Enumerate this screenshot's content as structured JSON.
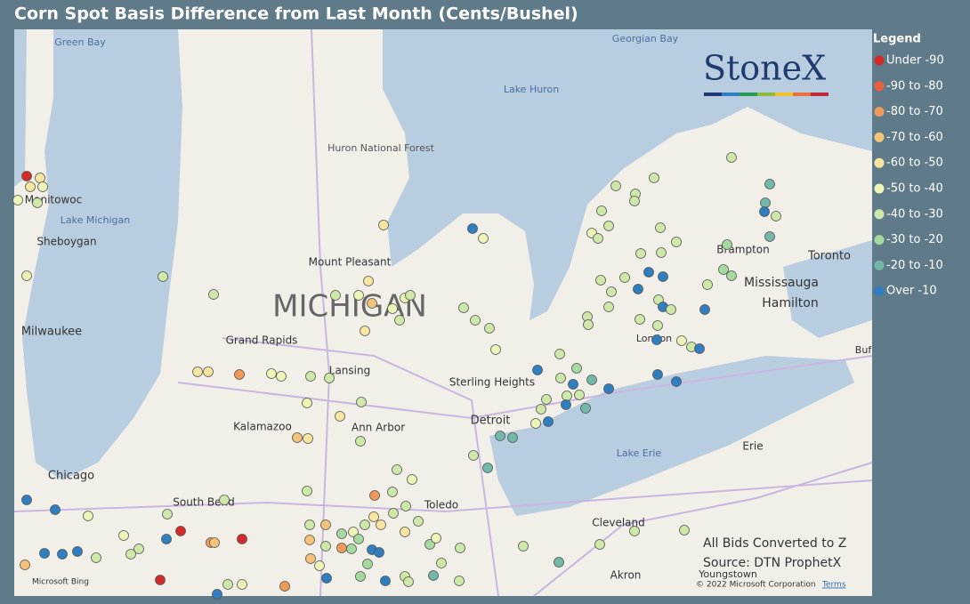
{
  "title": "Corn Spot Basis Difference from Last Month (Cents/Bushel)",
  "legend": {
    "title": "Legend",
    "items": [
      {
        "label": "Under -90",
        "color": "#d42a2a"
      },
      {
        "label": "-90 to -80",
        "color": "#e8603c"
      },
      {
        "label": "-80 to -70",
        "color": "#f09a5a"
      },
      {
        "label": "-70 to -60",
        "color": "#f5c27a"
      },
      {
        "label": "-60 to -50",
        "color": "#f8e6a0"
      },
      {
        "label": "-50 to -40",
        "color": "#eef4b8"
      },
      {
        "label": "-40 to -30",
        "color": "#cde8a8"
      },
      {
        "label": "-30 to -20",
        "color": "#a6d9a0"
      },
      {
        "label": "-20 to -10",
        "color": "#72b8a8"
      },
      {
        "label": "Over -10",
        "color": "#2f7fc0"
      }
    ]
  },
  "logo": "StoneX",
  "notes": [
    "All Bids Converted to Z",
    "Source: DTN ProphetX"
  ],
  "attribution": {
    "provider": "Microsoft Bing",
    "copyright": "© 2022 Microsoft Corporation",
    "terms": "Terms"
  },
  "map_labels": [
    "Green Bay",
    "Georgian Bay",
    "Lake Huron",
    "Huron National Forest",
    "Manitowoc",
    "Lake Michigan",
    "Sheboygan",
    "Mount Pleasant",
    "MICHIGAN",
    "Milwaukee",
    "Grand Rapids",
    "Lansing",
    "Sterling Heights",
    "Kalamazoo",
    "Ann Arbor",
    "Detroit",
    "Chicago",
    "South Bend",
    "Toledo",
    "Lake Erie",
    "Erie",
    "Cleveland",
    "Akron",
    "Youngstown",
    "Toronto",
    "Brampton",
    "Mississauga",
    "Hamilton",
    "London",
    "Buf"
  ]
}
